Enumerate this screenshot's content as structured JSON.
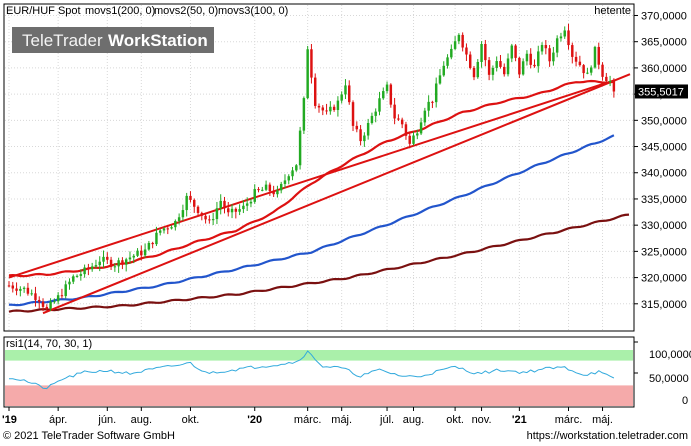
{
  "header": {
    "series_label": "EUR/HUF Spot",
    "indicators": [
      "movs1(200, 0)",
      "movs2(50, 0)",
      "movs3(100, 0)"
    ],
    "period": "hetente",
    "logo_text_1": "TeleTrader",
    "logo_text_2": "WorkStation"
  },
  "rsi_panel": {
    "label": "rsi1(14, 70, 30, 1)",
    "ticks": [
      "100,0000",
      "50,0000",
      "0"
    ]
  },
  "footer": {
    "copyright": "© 2021 TeleTrader Software GmbH",
    "url": "https://workstation.teletrader.com"
  },
  "colors": {
    "up": "#22aa22",
    "down": "#dd1111",
    "ma_red": "#dd1111",
    "ma_blue": "#2255cc",
    "ma_maroon": "#7a1010",
    "trend": "#dd1111",
    "rsi_line": "#33aadd",
    "overbought": "#aaf0aa",
    "oversold": "#f5aaaa",
    "price_box": "#000000"
  },
  "chart_data": {
    "type": "candlestick",
    "title": "EUR/HUF Spot",
    "current_price": "355,5017",
    "ylim": [
      310000,
      372000
    ],
    "y_ticks": [
      {
        "value": 315000,
        "label": "315,0000"
      },
      {
        "value": 320000,
        "label": "320,0000"
      },
      {
        "value": 325000,
        "label": "325,0000"
      },
      {
        "value": 330000,
        "label": "330,0000"
      },
      {
        "value": 335000,
        "label": "335,0000"
      },
      {
        "value": 340000,
        "label": "340,0000"
      },
      {
        "value": 345000,
        "label": "345,0000"
      },
      {
        "value": 350000,
        "label": "350,0000"
      },
      {
        "value": 355000,
        "label": "355,0000"
      },
      {
        "value": 360000,
        "label": "360,0000"
      },
      {
        "value": 365000,
        "label": "365,0000"
      },
      {
        "value": 370000,
        "label": "370,0000"
      }
    ],
    "x_ticks": [
      {
        "week": 0,
        "label": "'19"
      },
      {
        "week": 13,
        "label": "ápr."
      },
      {
        "week": 26,
        "label": "jún."
      },
      {
        "week": 35,
        "label": "aug."
      },
      {
        "week": 48,
        "label": "okt."
      },
      {
        "week": 65,
        "label": "'20"
      },
      {
        "week": 79,
        "label": "márc."
      },
      {
        "week": 88,
        "label": "máj."
      },
      {
        "week": 100,
        "label": "júl."
      },
      {
        "week": 107,
        "label": "aug."
      },
      {
        "week": 118,
        "label": "okt."
      },
      {
        "week": 125,
        "label": "nov."
      },
      {
        "week": 135,
        "label": "'21"
      },
      {
        "week": 148,
        "label": "márc."
      },
      {
        "week": 157,
        "label": "máj."
      }
    ],
    "weeks": 164,
    "close_anchors": [
      [
        0,
        318.5
      ],
      [
        4,
        317.8
      ],
      [
        8,
        316.0
      ],
      [
        10,
        313.8
      ],
      [
        13,
        316.2
      ],
      [
        17,
        320.0
      ],
      [
        21,
        321.6
      ],
      [
        24,
        323.4
      ],
      [
        28,
        322.6
      ],
      [
        32,
        323.9
      ],
      [
        36,
        325.1
      ],
      [
        40,
        329.0
      ],
      [
        44,
        330.6
      ],
      [
        47,
        335.2
      ],
      [
        50,
        333.0
      ],
      [
        53,
        330.3
      ],
      [
        56,
        334.7
      ],
      [
        58,
        332.0
      ],
      [
        62,
        333.3
      ],
      [
        65,
        336.1
      ],
      [
        68,
        337.0
      ],
      [
        71,
        336.0
      ],
      [
        74,
        340.0
      ],
      [
        76,
        341.7
      ],
      [
        78,
        353.6
      ],
      [
        79,
        364.0
      ],
      [
        81,
        353.5
      ],
      [
        84,
        351.1
      ],
      [
        87,
        353.4
      ],
      [
        89,
        357.2
      ],
      [
        91,
        348.8
      ],
      [
        93,
        346.3
      ],
      [
        95,
        349.1
      ],
      [
        98,
        353.8
      ],
      [
        100,
        356.2
      ],
      [
        102,
        350.6
      ],
      [
        104,
        349.3
      ],
      [
        106,
        345.4
      ],
      [
        108,
        348.3
      ],
      [
        110,
        352.5
      ],
      [
        112,
        354.0
      ],
      [
        115,
        360.7
      ],
      [
        117,
        362.9
      ],
      [
        119,
        366.7
      ],
      [
        121,
        362.5
      ],
      [
        123,
        358.8
      ],
      [
        125,
        364.7
      ],
      [
        127,
        358.4
      ],
      [
        129,
        361.7
      ],
      [
        131,
        358.8
      ],
      [
        133,
        363.9
      ],
      [
        135,
        359.1
      ],
      [
        137,
        362.7
      ],
      [
        139,
        360.0
      ],
      [
        141,
        364.8
      ],
      [
        143,
        361.4
      ],
      [
        145,
        365.5
      ],
      [
        147,
        367.8
      ],
      [
        149,
        362.5
      ],
      [
        151,
        360.7
      ],
      [
        153,
        358.5
      ],
      [
        155,
        363.2
      ],
      [
        157,
        358.9
      ],
      [
        159,
        357.4
      ],
      [
        160,
        355.5
      ]
    ],
    "series": [
      {
        "name": "movs1(200, 0)",
        "color_key": "ma_maroon",
        "anchors": [
          [
            0,
            313.5
          ],
          [
            30,
            314.6
          ],
          [
            60,
            316.8
          ],
          [
            90,
            320.0
          ],
          [
            120,
            324.5
          ],
          [
            150,
            329.6
          ],
          [
            164,
            332.0
          ]
        ]
      },
      {
        "name": "movs2(50, 0)",
        "color_key": "ma_red",
        "anchors": [
          [
            0,
            320.3
          ],
          [
            10,
            320.6
          ],
          [
            20,
            321.5
          ],
          [
            30,
            322.6
          ],
          [
            40,
            324.5
          ],
          [
            50,
            326.9
          ],
          [
            60,
            329.0
          ],
          [
            70,
            332.4
          ],
          [
            80,
            338.0
          ],
          [
            90,
            342.2
          ],
          [
            100,
            346.0
          ],
          [
            110,
            348.6
          ],
          [
            120,
            351.5
          ],
          [
            130,
            353.5
          ],
          [
            140,
            355.0
          ],
          [
            150,
            357.4
          ],
          [
            160,
            357.3
          ]
        ]
      },
      {
        "name": "movs3(100, 0)",
        "color_key": "ma_blue",
        "anchors": [
          [
            0,
            314.7
          ],
          [
            20,
            316.2
          ],
          [
            40,
            318.5
          ],
          [
            60,
            321.6
          ],
          [
            80,
            324.9
          ],
          [
            100,
            330.1
          ],
          [
            120,
            335.6
          ],
          [
            140,
            341.5
          ],
          [
            160,
            347.0
          ]
        ]
      }
    ],
    "trendlines": [
      {
        "x1": 9,
        "y1": 313.2,
        "x2": 169,
        "y2": 358.8
      },
      {
        "x1": 0,
        "y1": 320.0,
        "x2": 160,
        "y2": 357.6
      }
    ],
    "rsi": {
      "overbought": 70,
      "oversold": 30,
      "anchors": [
        [
          0,
          43
        ],
        [
          4,
          38
        ],
        [
          8,
          29
        ],
        [
          10,
          25
        ],
        [
          14,
          40
        ],
        [
          20,
          51
        ],
        [
          26,
          54
        ],
        [
          32,
          49
        ],
        [
          38,
          56
        ],
        [
          44,
          62
        ],
        [
          48,
          66
        ],
        [
          52,
          50
        ],
        [
          58,
          54
        ],
        [
          64,
          59
        ],
        [
          70,
          63
        ],
        [
          76,
          68
        ],
        [
          79,
          84
        ],
        [
          83,
          61
        ],
        [
          88,
          58
        ],
        [
          93,
          45
        ],
        [
          98,
          55
        ],
        [
          104,
          45
        ],
        [
          108,
          44
        ],
        [
          113,
          52
        ],
        [
          118,
          60
        ],
        [
          124,
          49
        ],
        [
          130,
          55
        ],
        [
          136,
          51
        ],
        [
          142,
          57
        ],
        [
          147,
          59
        ],
        [
          152,
          47
        ],
        [
          156,
          52
        ],
        [
          160,
          40
        ]
      ]
    }
  }
}
